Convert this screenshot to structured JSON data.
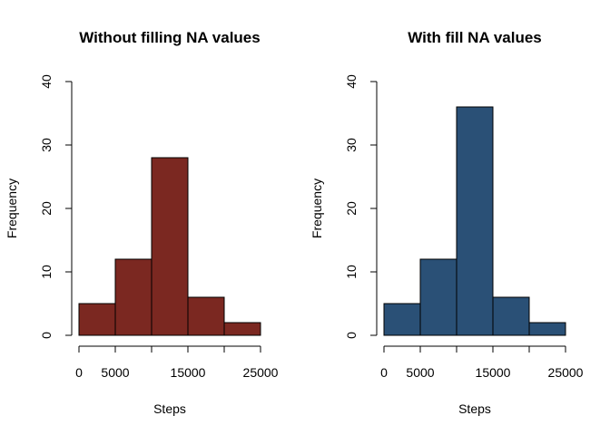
{
  "chart_data": [
    {
      "type": "bar",
      "title": "Without filling NA values",
      "xlabel": "Steps",
      "ylabel": "Frequency",
      "bins": [
        [
          0,
          5000
        ],
        [
          5000,
          10000
        ],
        [
          10000,
          15000
        ],
        [
          15000,
          20000
        ],
        [
          20000,
          25000
        ]
      ],
      "values": [
        5,
        12,
        28,
        6,
        2
      ],
      "xlim": [
        0,
        25000
      ],
      "ylim": [
        0,
        40
      ],
      "x_ticks": [
        0,
        5000,
        10000,
        15000,
        20000,
        25000
      ],
      "x_tick_labels": [
        "0",
        "5000",
        "",
        "15000",
        "",
        "25000"
      ],
      "y_ticks": [
        0,
        10,
        20,
        30,
        40
      ],
      "y_tick_labels": [
        "0",
        "10",
        "20",
        "30",
        "40"
      ],
      "bar_color": "#7b2821",
      "grid": false
    },
    {
      "type": "bar",
      "title": "With fill NA values",
      "xlabel": "Steps",
      "ylabel": "Frequency",
      "bins": [
        [
          0,
          5000
        ],
        [
          5000,
          10000
        ],
        [
          10000,
          15000
        ],
        [
          15000,
          20000
        ],
        [
          20000,
          25000
        ]
      ],
      "values": [
        5,
        12,
        36,
        6,
        2
      ],
      "xlim": [
        0,
        25000
      ],
      "ylim": [
        0,
        40
      ],
      "x_ticks": [
        0,
        5000,
        10000,
        15000,
        20000,
        25000
      ],
      "x_tick_labels": [
        "0",
        "5000",
        "",
        "15000",
        "",
        "25000"
      ],
      "y_ticks": [
        0,
        10,
        20,
        30,
        40
      ],
      "y_tick_labels": [
        "0",
        "10",
        "20",
        "30",
        "40"
      ],
      "bar_color": "#2a5076",
      "grid": false
    }
  ]
}
